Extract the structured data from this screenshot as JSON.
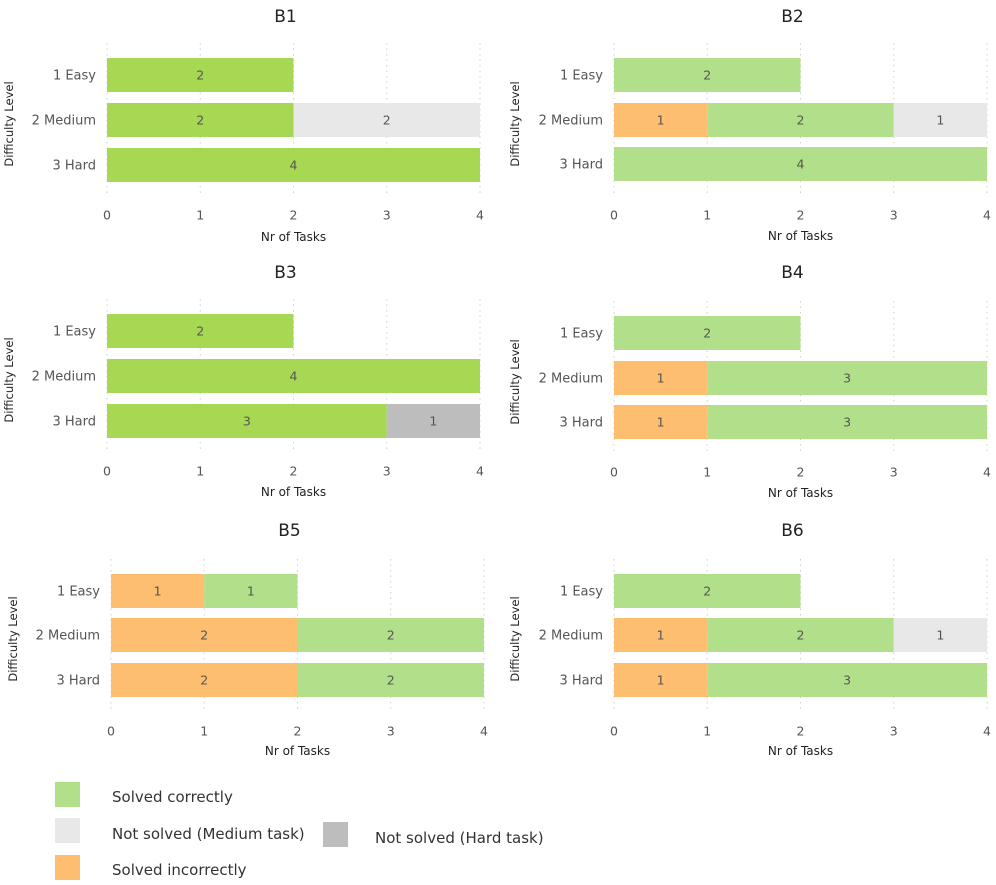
{
  "chart_data": [
    {
      "type": "bar",
      "orientation": "horizontal",
      "stacked": true,
      "title": "B1",
      "xlabel": "Nr of Tasks",
      "ylabel": "Difficulty Level",
      "xlim": [
        0,
        4
      ],
      "xticks": [
        "0",
        "1",
        "2",
        "3",
        "4"
      ],
      "categories": [
        "1 Easy",
        "2 Medium",
        "3 Hard"
      ],
      "series": [
        {
          "name": "Solved correctly",
          "values": [
            2,
            2,
            4
          ],
          "color": "#a6d854"
        },
        {
          "name": "Not solved (Medium task)",
          "values": [
            0,
            2,
            0
          ],
          "color": "#e8e8e8"
        }
      ]
    },
    {
      "type": "bar",
      "orientation": "horizontal",
      "stacked": true,
      "title": "B2",
      "xlabel": "Nr of Tasks",
      "ylabel": "Difficulty Level",
      "xlim": [
        0,
        4
      ],
      "xticks": [
        "0",
        "1",
        "2",
        "3",
        "4"
      ],
      "categories": [
        "1 Easy",
        "2 Medium",
        "3 Hard"
      ],
      "series": [
        {
          "name": "Solved incorrectly",
          "values": [
            0,
            1,
            0
          ],
          "color": "#fdbf6f"
        },
        {
          "name": "Solved correctly",
          "values": [
            2,
            2,
            4
          ],
          "color": "#b2df8a"
        },
        {
          "name": "Not solved (Medium task)",
          "values": [
            0,
            1,
            0
          ],
          "color": "#e8e8e8"
        }
      ]
    },
    {
      "type": "bar",
      "orientation": "horizontal",
      "stacked": true,
      "title": "B3",
      "xlabel": "Nr of Tasks",
      "ylabel": "Difficulty Level",
      "xlim": [
        0,
        4
      ],
      "xticks": [
        "0",
        "1",
        "2",
        "3",
        "4"
      ],
      "categories": [
        "1 Easy",
        "2 Medium",
        "3 Hard"
      ],
      "series": [
        {
          "name": "Solved correctly",
          "values": [
            2,
            4,
            3
          ],
          "color": "#a6d854"
        },
        {
          "name": "Not solved (Hard task)",
          "values": [
            0,
            0,
            1
          ],
          "color": "#bdbdbd"
        }
      ]
    },
    {
      "type": "bar",
      "orientation": "horizontal",
      "stacked": true,
      "title": "B4",
      "xlabel": "Nr of Tasks",
      "ylabel": "Difficulty Level",
      "xlim": [
        0,
        4
      ],
      "xticks": [
        "0",
        "1",
        "2",
        "3",
        "4"
      ],
      "categories": [
        "1 Easy",
        "2 Medium",
        "3 Hard"
      ],
      "series": [
        {
          "name": "Solved incorrectly",
          "values": [
            0,
            1,
            1
          ],
          "color": "#fdbf6f"
        },
        {
          "name": "Solved correctly",
          "values": [
            2,
            3,
            3
          ],
          "color": "#b2df8a"
        }
      ]
    },
    {
      "type": "bar",
      "orientation": "horizontal",
      "stacked": true,
      "title": "B5",
      "xlabel": "Nr of Tasks",
      "ylabel": "Difficulty Level",
      "xlim": [
        0,
        4
      ],
      "xticks": [
        "0",
        "1",
        "2",
        "3",
        "4"
      ],
      "categories": [
        "1 Easy",
        "2 Medium",
        "3 Hard"
      ],
      "series": [
        {
          "name": "Solved incorrectly",
          "values": [
            1,
            2,
            2
          ],
          "color": "#fdbf6f"
        },
        {
          "name": "Solved correctly",
          "values": [
            1,
            2,
            2
          ],
          "color": "#b2df8a"
        }
      ]
    },
    {
      "type": "bar",
      "orientation": "horizontal",
      "stacked": true,
      "title": "B6",
      "xlabel": "Nr of Tasks",
      "ylabel": "Difficulty Level",
      "xlim": [
        0,
        4
      ],
      "xticks": [
        "0",
        "1",
        "2",
        "3",
        "4"
      ],
      "categories": [
        "1 Easy",
        "2 Medium",
        "3 Hard"
      ],
      "series": [
        {
          "name": "Solved incorrectly",
          "values": [
            0,
            1,
            1
          ],
          "color": "#fdbf6f"
        },
        {
          "name": "Solved correctly",
          "values": [
            2,
            2,
            3
          ],
          "color": "#b2df8a"
        },
        {
          "name": "Not solved (Medium task)",
          "values": [
            0,
            1,
            0
          ],
          "color": "#e8e8e8"
        }
      ]
    }
  ],
  "legend": [
    {
      "label": "Solved correctly",
      "color": "#b2df8a"
    },
    {
      "label": "Not solved (Medium task)",
      "color": "#e8e8e8"
    },
    {
      "label": "Not solved (Hard task)",
      "color": "#bdbdbd"
    },
    {
      "label": "Solved incorrectly",
      "color": "#fdbf6f"
    }
  ]
}
